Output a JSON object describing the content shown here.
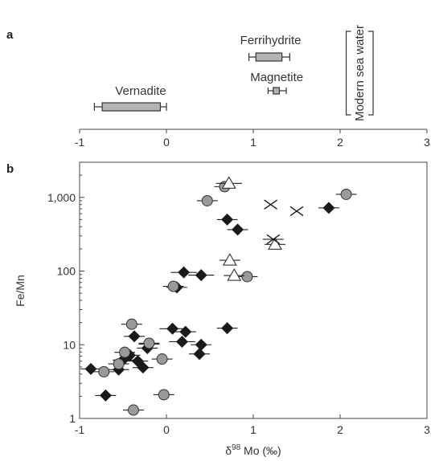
{
  "colors": {
    "axis": "#444444",
    "box_fill": "#b3b3b3",
    "box_stroke": "#333333",
    "diamond": "#1a1a1a",
    "circle_fill": "#9a9a9a",
    "circle_stroke": "#333333",
    "triangle_fill": "#ffffff",
    "cross": "#1a1a1a"
  },
  "chart_data": [
    {
      "panel": "a",
      "type": "box",
      "xlim": [
        -1,
        3
      ],
      "xticks": [
        -1,
        0,
        1,
        2,
        3
      ],
      "ranges": [
        {
          "name": "Vernadite",
          "low": -0.83,
          "q1": -0.74,
          "q3": -0.07,
          "high": 0.0
        },
        {
          "name": "Ferrihydrite",
          "low": 0.95,
          "q1": 1.03,
          "q3": 1.33,
          "high": 1.42
        },
        {
          "name": "Magnetite",
          "low": 1.17,
          "q1": 1.23,
          "q3": 1.3,
          "high": 1.38
        }
      ],
      "bracket": {
        "name": "Modern sea water",
        "x_low": 2.07,
        "x_high": 2.38
      }
    },
    {
      "panel": "b",
      "type": "scatter",
      "xlabel_prefix": "δ",
      "xlabel_superscript": "98",
      "xlabel_main": " Mo (‰)",
      "ylabel": "Fe/Mn",
      "xlim": [
        -1,
        3
      ],
      "ylim": [
        1,
        3000
      ],
      "yscale": "log",
      "xticks": [
        -1,
        0,
        1,
        2,
        3
      ],
      "yticks": [
        1,
        10,
        100,
        1000
      ],
      "ytick_labels": [
        "1",
        "10",
        "100",
        "1,000"
      ],
      "series": [
        {
          "marker": "diamond",
          "points": [
            {
              "x": -0.87,
              "y": 4.7,
              "xerr": 0.12
            },
            {
              "x": -0.7,
              "y": 2.05,
              "xerr": 0.12
            },
            {
              "x": -0.55,
              "y": 4.6,
              "xerr": 0.12
            },
            {
              "x": -0.5,
              "y": 6.2,
              "xerr": 0.12
            },
            {
              "x": -0.42,
              "y": 7.2,
              "xerr": 0.12
            },
            {
              "x": -0.37,
              "y": 13.0,
              "xerr": 0.12
            },
            {
              "x": -0.33,
              "y": 6.0,
              "xerr": 0.12
            },
            {
              "x": -0.27,
              "y": 4.9,
              "xerr": 0.12
            },
            {
              "x": -0.22,
              "y": 9.0,
              "xerr": 0.12
            },
            {
              "x": -0.2,
              "y": 10.2,
              "xerr": 0.12
            },
            {
              "x": 0.07,
              "y": 16.5,
              "xerr": 0.15
            },
            {
              "x": 0.12,
              "y": 60.0,
              "xerr": 0.12
            },
            {
              "x": 0.18,
              "y": 11.0,
              "xerr": 0.15
            },
            {
              "x": 0.2,
              "y": 96.0,
              "xerr": 0.15
            },
            {
              "x": 0.22,
              "y": 15.0,
              "xerr": 0.12
            },
            {
              "x": 0.38,
              "y": 7.5,
              "xerr": 0.12
            },
            {
              "x": 0.4,
              "y": 10.0,
              "xerr": 0.12
            },
            {
              "x": 0.4,
              "y": 88.0,
              "xerr": 0.15
            },
            {
              "x": 0.7,
              "y": 16.8,
              "xerr": 0.12
            },
            {
              "x": 0.7,
              "y": 500.0,
              "xerr": 0.12
            },
            {
              "x": 0.82,
              "y": 365.0,
              "xerr": 0.12
            },
            {
              "x": 1.87,
              "y": 720.0,
              "xerr": 0.12
            }
          ]
        },
        {
          "marker": "circle",
          "points": [
            {
              "x": -0.72,
              "y": 4.3,
              "xerr": 0.12
            },
            {
              "x": -0.55,
              "y": 5.5,
              "xerr": 0.12
            },
            {
              "x": -0.48,
              "y": 7.9,
              "xerr": 0.12
            },
            {
              "x": -0.4,
              "y": 19.0,
              "xerr": 0.12
            },
            {
              "x": -0.38,
              "y": 1.3,
              "xerr": 0.12
            },
            {
              "x": -0.2,
              "y": 10.5,
              "xerr": 0.12
            },
            {
              "x": -0.05,
              "y": 6.4,
              "xerr": 0.12
            },
            {
              "x": -0.03,
              "y": 2.1,
              "xerr": 0.12
            },
            {
              "x": 0.08,
              "y": 62.0,
              "xerr": 0.12
            },
            {
              "x": 0.47,
              "y": 900.0,
              "xerr": 0.12
            },
            {
              "x": 0.67,
              "y": 1400.0,
              "xerr": 0.12
            },
            {
              "x": 0.93,
              "y": 84.0,
              "xerr": 0.12
            },
            {
              "x": 2.07,
              "y": 1100.0,
              "xerr": 0.12
            }
          ]
        },
        {
          "marker": "triangle",
          "points": [
            {
              "x": 0.72,
              "y": 1550.0,
              "xerr": 0.15
            },
            {
              "x": 0.73,
              "y": 140.0,
              "xerr": 0.12
            },
            {
              "x": 0.78,
              "y": 87.0,
              "xerr": 0.12
            },
            {
              "x": 1.25,
              "y": 230.0,
              "xerr": 0.12
            }
          ]
        },
        {
          "marker": "cross",
          "points": [
            {
              "x": 1.2,
              "y": 800.0,
              "xerr": 0.0
            },
            {
              "x": 1.23,
              "y": 270.0,
              "xerr": 0.12
            },
            {
              "x": 1.5,
              "y": 650.0,
              "xerr": 0.0
            }
          ]
        }
      ]
    }
  ]
}
